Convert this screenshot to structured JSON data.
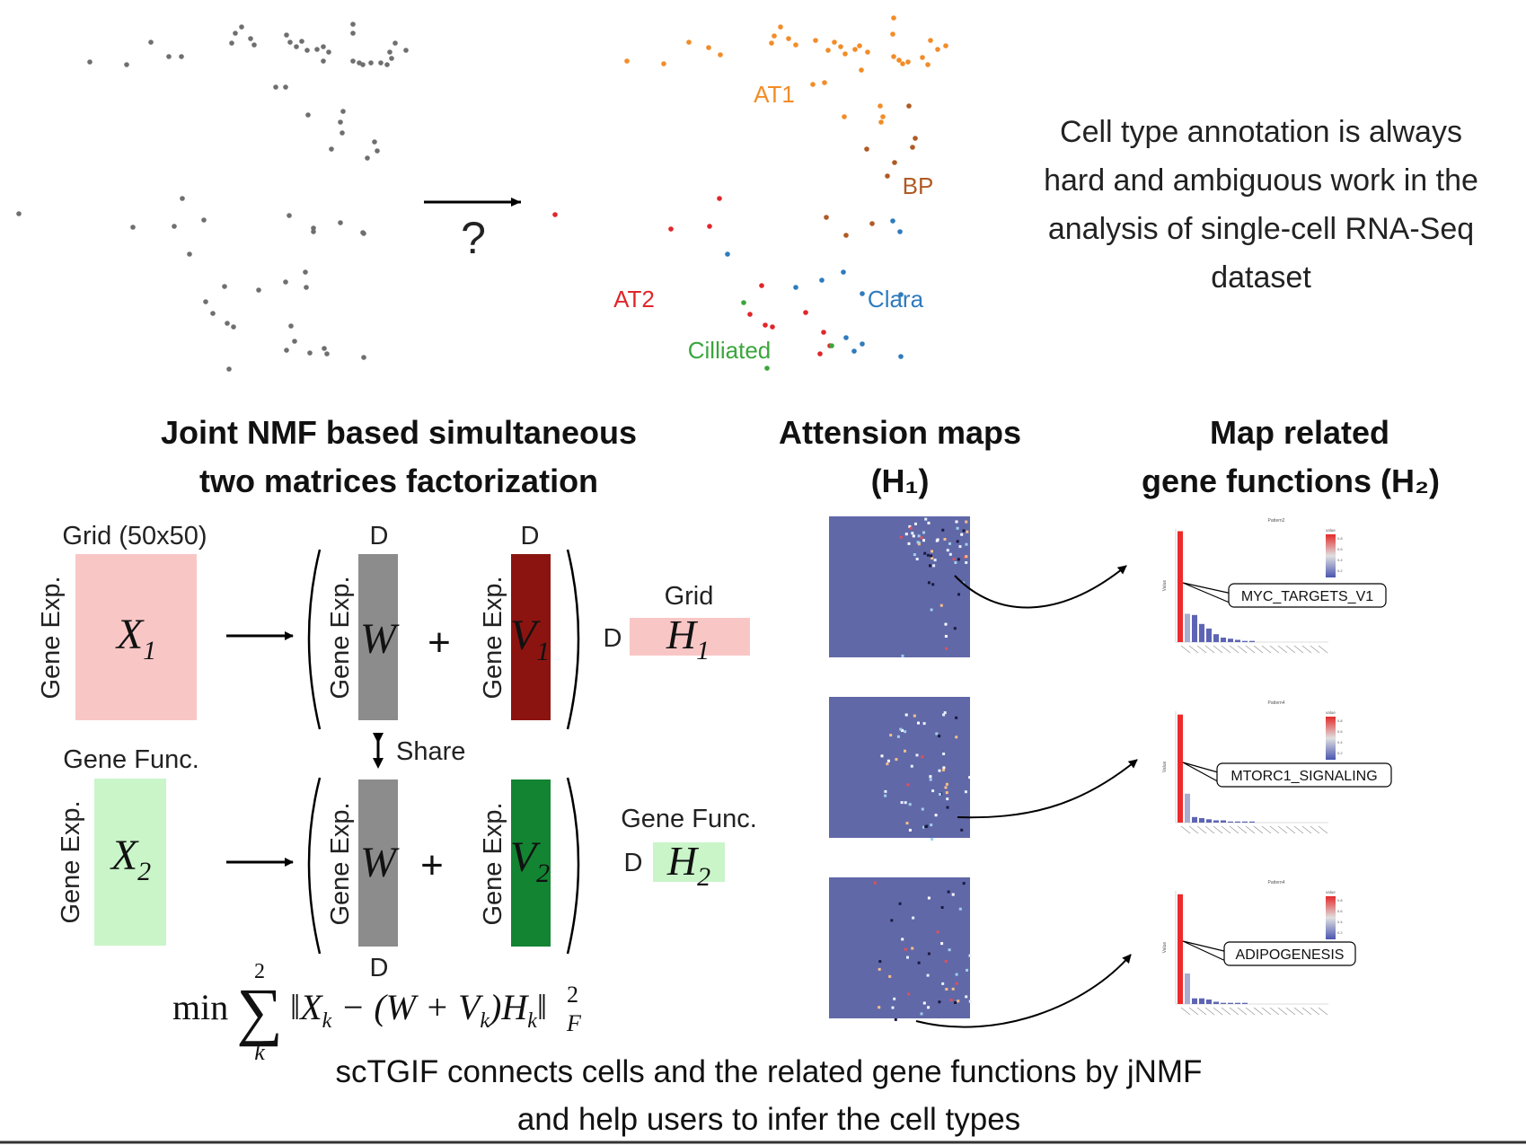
{
  "top": {
    "question_mark": "?",
    "cluster_labels": [
      {
        "id": "at1",
        "text": "AT1",
        "color": "#f28c28"
      },
      {
        "id": "bp",
        "text": "BP",
        "color": "#b05a24"
      },
      {
        "id": "clara",
        "text": "Clara",
        "color": "#2f7bbd"
      },
      {
        "id": "at2",
        "text": "AT2",
        "color": "#e0262b"
      },
      {
        "id": "cilliated",
        "text": "Cilliated",
        "color": "#3aa63c"
      }
    ],
    "annotation_text": [
      "Cell type annotation is always",
      "hard and ambiguous work in the",
      "analysis of single-cell RNA-Seq",
      "dataset"
    ]
  },
  "headings": {
    "jnmf": [
      "Joint NMF based simultaneous",
      "two matrices factorization"
    ],
    "attention": [
      "Attension maps",
      "(H₁)"
    ],
    "gene_functions": [
      "Map related",
      "gene functions (H₂)"
    ]
  },
  "matrices": {
    "grid_label": "Grid (50x50)",
    "gene_exp": "Gene Exp.",
    "gene_func": "Gene Func.",
    "grid": "Grid",
    "D": "D",
    "share": "Share",
    "X1": "X",
    "X1_sub": "1",
    "X2": "X",
    "X2_sub": "2",
    "W": "W",
    "V1": "V",
    "V1_sub": "1",
    "V2": "V",
    "V2_sub": "2",
    "H1": "H",
    "H1_sub": "1",
    "H2": "H",
    "H2_sub": "2",
    "plus": "+",
    "colors": {
      "x1": "#f9c6c6",
      "x2": "#c9f5c9",
      "w": "#8c8c8c",
      "v1": "#8b1410",
      "v2": "#128432"
    }
  },
  "formula": {
    "min": "min",
    "sigma": "∑",
    "upper": "2",
    "lower": "k",
    "body_a": "‖X",
    "sub_k1": "k",
    "body_b": " − (W + V",
    "sub_k2": "k",
    "body_c": ")H",
    "sub_k3": "k",
    "body_d": "‖",
    "sup_2": "2",
    "sub_F": "F"
  },
  "gene_sets": [
    {
      "label": "MYC_TARGETS_V1",
      "title": "Pattern2",
      "values": [
        0.98,
        0.25,
        0.24,
        0.16,
        0.12,
        0.07,
        0.04,
        0.03,
        0.02,
        0.01,
        0.01
      ]
    },
    {
      "label": "MTORC1_SIGNALING",
      "title": "Pattern4",
      "values": [
        0.97,
        0.26,
        0.05,
        0.04,
        0.03,
        0.02,
        0.02,
        0.01,
        0.01,
        0.01,
        0.01
      ]
    },
    {
      "label": "ADIPOGENESIS",
      "title": "Pattern4",
      "values": [
        0.97,
        0.27,
        0.05,
        0.05,
        0.04,
        0.02,
        0.01,
        0.01,
        0.01,
        0.01
      ]
    }
  ],
  "mini_chart": {
    "axis_label": "Value",
    "legend_title": "value",
    "ticks": [
      "0.8",
      "0.6",
      "0.4",
      "0.2"
    ]
  },
  "heatmap_bg": "#6168a8",
  "caption": [
    "scTGIF connects cells and the related gene functions by jNMF",
    "and help users to infer the cell types"
  ]
}
